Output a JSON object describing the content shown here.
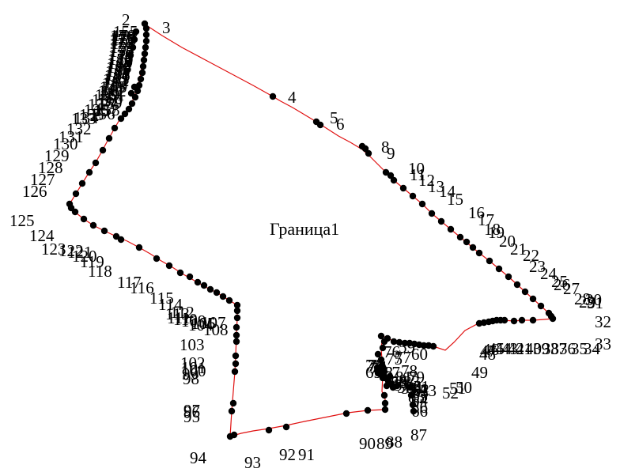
{
  "diagram": {
    "area_label": "Граница1",
    "boundary_color": "#e01010",
    "vertex_color": "#000000",
    "labeled_points": [
      "2",
      "3",
      "4",
      "5",
      "6",
      "8",
      "9",
      "10",
      "11",
      "12",
      "13",
      "14",
      "15",
      "16",
      "17",
      "18",
      "19",
      "20",
      "21",
      "22",
      "23",
      "24",
      "25",
      "26",
      "27",
      "28",
      "29",
      "30",
      "31",
      "32",
      "33",
      "34",
      "35",
      "36",
      "37",
      "38",
      "39",
      "40",
      "41",
      "42",
      "43",
      "44",
      "45",
      "46",
      "47",
      "48",
      "49",
      "50",
      "51",
      "52",
      "53",
      "54",
      "55",
      "56",
      "57",
      "58",
      "59",
      "60",
      "61",
      "62",
      "63",
      "64",
      "65",
      "66",
      "67",
      "68",
      "69",
      "70",
      "71",
      "72",
      "73",
      "74",
      "75",
      "76",
      "77",
      "78",
      "79",
      "80",
      "81",
      "82",
      "83",
      "84",
      "85",
      "86",
      "87",
      "88",
      "89",
      "90",
      "91",
      "92",
      "93",
      "94",
      "95",
      "96",
      "97",
      "98",
      "99",
      "100",
      "101",
      "102",
      "103",
      "104",
      "105",
      "106",
      "107",
      "108",
      "109",
      "110",
      "111",
      "112",
      "113",
      "114",
      "115",
      "116",
      "117",
      "118",
      "119",
      "120",
      "121",
      "122",
      "123",
      "124",
      "125",
      "126",
      "127",
      "128",
      "129",
      "130",
      "131",
      "132",
      "133",
      "134",
      "135",
      "136",
      "137",
      "138",
      "139",
      "140",
      "141",
      "142",
      "143",
      "144",
      "145",
      "146",
      "147",
      "148",
      "149",
      "150",
      "151",
      "152",
      "153",
      "154",
      "155",
      "156",
      "157",
      "158",
      "159",
      "160",
      "161",
      "162",
      "163",
      "164",
      "165",
      "166",
      "167",
      "168",
      "169",
      "170",
      "171",
      "172",
      "173",
      "174",
      "175",
      "176",
      "177",
      "178",
      "179"
    ]
  }
}
